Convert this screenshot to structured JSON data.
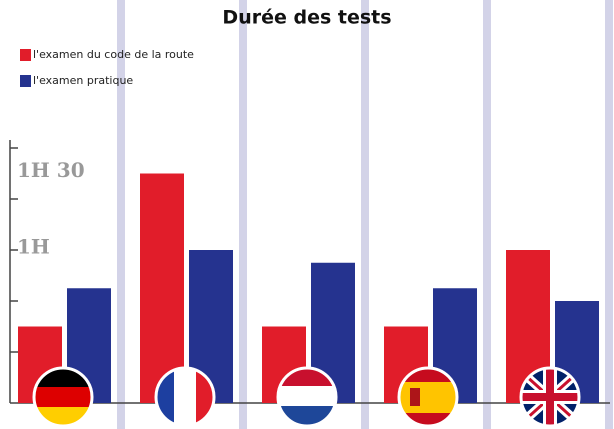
{
  "chart_data": {
    "type": "bar",
    "title": "Durée des tests",
    "categories": [
      null,
      null,
      null,
      null,
      null
    ],
    "series": [
      {
        "name": "l'examen du code de la route",
        "color": "#e11d2a",
        "values": [
          30,
          90,
          30,
          30,
          60
        ]
      },
      {
        "name": "l'examen pratique",
        "color": "#25338f",
        "values": [
          45,
          60,
          55,
          45,
          40
        ]
      }
    ],
    "ylim": [
      0,
      105
    ],
    "yticks": [
      {
        "value": 60,
        "label": "1H"
      },
      {
        "value": 90,
        "label": "1H 30"
      }
    ],
    "ytick_marks": [
      20,
      40,
      60,
      80,
      100
    ],
    "legend": "top-left"
  }
}
